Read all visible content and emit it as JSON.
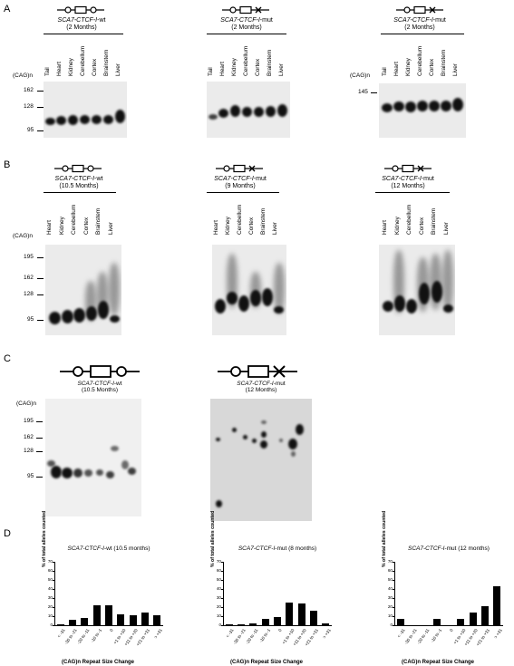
{
  "panels": {
    "A": {
      "label": "A",
      "gels": [
        {
          "title_italic": "SCA7-CTCF-I",
          "title_rest": "-wt",
          "age": "(2 Months)",
          "construct": "wt",
          "lanes": [
            "Tail",
            "Heart",
            "Kidney",
            "Cerebellum",
            "Cortex",
            "Brainstem",
            "Liver"
          ]
        },
        {
          "title_italic": "SCA7-CTCF-I",
          "title_rest": "-mut",
          "age": "(2 Months)",
          "construct": "mut",
          "lanes": [
            "Tail",
            "Heart",
            "Kidney",
            "Cerebellum",
            "Cortex",
            "Brainstem",
            "Liver"
          ]
        },
        {
          "title_italic": "SCA7-CTCF-I",
          "title_rest": "-mut",
          "age": "(2 Months)",
          "construct": "mut",
          "lanes": [
            "Tail",
            "Heart",
            "Kidney",
            "Cerebellum",
            "Cortex",
            "Brainstem",
            "Liver"
          ]
        }
      ],
      "y_title": "(CAG)n",
      "y_markers": [
        "162",
        "128",
        "95"
      ],
      "y_marker_right": "145"
    },
    "B": {
      "label": "B",
      "gels": [
        {
          "title_italic": "SCA7-CTCF-I",
          "title_rest": "-wt",
          "age": "(10.5 Months)",
          "construct": "wt",
          "lanes": [
            "Heart",
            "Kidney",
            "Cerebellum",
            "Cortex",
            "Brainstem",
            "Liver"
          ]
        },
        {
          "title_italic": "SCA7-CTCF-I",
          "title_rest": "-mut",
          "age": "(9 Months)",
          "construct": "mut",
          "lanes": [
            "Heart",
            "Kidney",
            "Cerebellum",
            "Cortex",
            "Brainstem",
            "Liver"
          ]
        },
        {
          "title_italic": "SCA7-CTCF-I",
          "title_rest": "-mut",
          "age": "(12 Months)",
          "construct": "mut",
          "lanes": [
            "Heart",
            "Kidney",
            "Cerebellum",
            "Cortex",
            "Brainstem",
            "Liver"
          ]
        }
      ],
      "y_title": "(CAG)n",
      "y_markers": [
        "195",
        "162",
        "128",
        "95"
      ]
    },
    "C": {
      "label": "C",
      "gels": [
        {
          "title_italic": "SCA7-CTCF-I",
          "title_rest": "-wt",
          "age": "(10.5 Months)",
          "construct": "wt"
        },
        {
          "title_italic": "SCA7-CTCF-I",
          "title_rest": "-mut",
          "age": "(12 Months)",
          "construct": "mut"
        }
      ],
      "y_title": "(CAG)n",
      "y_markers": [
        "195",
        "162",
        "128",
        "95"
      ]
    },
    "D": {
      "label": "D"
    }
  },
  "chart_data": [
    {
      "type": "bar",
      "title_italic": "SCA7-CTCF-I",
      "title_rest": "-wt (10.5 months)",
      "categories": [
        "< -31",
        "-30 to -21",
        "-20 to -11",
        "-10 to -1",
        "0",
        "+1 to +10",
        "+11 to +20",
        "+21 to +31",
        "> +31"
      ],
      "values": [
        1,
        6,
        8,
        22,
        22,
        12,
        11,
        14,
        11
      ],
      "ylabel": "% of total alleles counted",
      "xlabel": "(CAG)n Repeat Size Change",
      "yticks": [
        "0",
        "10",
        "20",
        "30",
        "40",
        "50",
        "60",
        "70"
      ],
      "ylim": [
        0,
        70
      ]
    },
    {
      "type": "bar",
      "title_italic": "SCA7-CTCF-I",
      "title_rest": "-mut (8 months)",
      "categories": [
        "< -31",
        "-30 to -21",
        "-20 to -11",
        "-10 to -1",
        "0",
        "+1 to +10",
        "+11 to +20",
        "+21 to +31",
        "> +31"
      ],
      "values": [
        1,
        1,
        2,
        7,
        9,
        25,
        24,
        16,
        2
      ],
      "ylabel": "% of total alleles counted",
      "xlabel": "(CAG)n Repeat Size Change",
      "yticks": [
        "0",
        "10",
        "20",
        "30",
        "40",
        "50",
        "60",
        "70"
      ],
      "ylim": [
        0,
        70
      ]
    },
    {
      "type": "bar",
      "title_italic": "SCA7-CTCF-I",
      "title_rest": "-mut (12 months)",
      "categories": [
        "< -31",
        "-30 to -21",
        "-20 to -11",
        "-10 to -1",
        "0",
        "+1 to +10",
        "+11 to +20",
        "+21 to +31",
        "> +31"
      ],
      "values": [
        7,
        0,
        0,
        7,
        0,
        7,
        14,
        21,
        43
      ],
      "ylabel": "% of total alleles counted",
      "xlabel": "(CAG)n Repeat Size Change",
      "yticks": [
        "0",
        "10",
        "20",
        "30",
        "40",
        "50",
        "60",
        "70"
      ],
      "ylim": [
        0,
        70
      ]
    }
  ]
}
